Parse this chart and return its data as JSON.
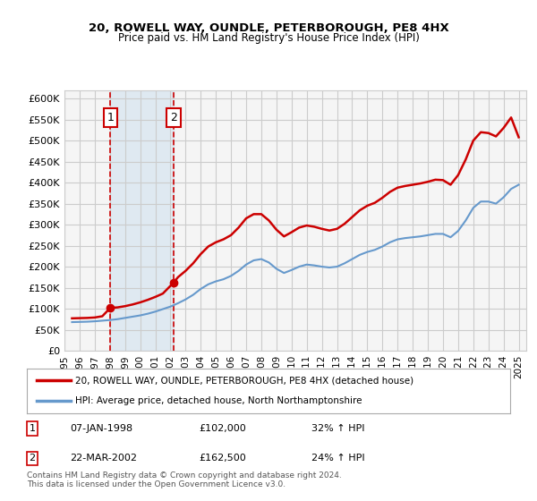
{
  "title1": "20, ROWELL WAY, OUNDLE, PETERBOROUGH, PE8 4HX",
  "title2": "Price paid vs. HM Land Registry's House Price Index (HPI)",
  "ylabel_ticks": [
    "£0",
    "£50K",
    "£100K",
    "£150K",
    "£200K",
    "£250K",
    "£300K",
    "£350K",
    "£400K",
    "£450K",
    "£500K",
    "£550K",
    "£600K"
  ],
  "ytick_values": [
    0,
    50000,
    100000,
    150000,
    200000,
    250000,
    300000,
    350000,
    400000,
    450000,
    500000,
    550000,
    600000
  ],
  "ylim": [
    0,
    620000
  ],
  "xlim_start": 1995.5,
  "xlim_end": 2025.5,
  "purchase1_x": 1998.03,
  "purchase1_y": 102000,
  "purchase1_label": "1",
  "purchase1_date": "07-JAN-1998",
  "purchase1_price": "£102,000",
  "purchase1_hpi": "32% ↑ HPI",
  "purchase2_x": 2002.22,
  "purchase2_y": 162500,
  "purchase2_label": "2",
  "purchase2_date": "22-MAR-2002",
  "purchase2_price": "£162,500",
  "purchase2_hpi": "24% ↑ HPI",
  "line1_color": "#cc0000",
  "line2_color": "#6699cc",
  "vline_color": "#cc0000",
  "shade_color": "#d6e4f0",
  "legend1": "20, ROWELL WAY, OUNDLE, PETERBOROUGH, PE8 4HX (detached house)",
  "legend2": "HPI: Average price, detached house, North Northamptonshire",
  "footnote": "Contains HM Land Registry data © Crown copyright and database right 2024.\nThis data is licensed under the Open Government Licence v3.0.",
  "hpi_data_x": [
    1995.5,
    1996.0,
    1996.5,
    1997.0,
    1997.5,
    1998.0,
    1998.5,
    1999.0,
    1999.5,
    2000.0,
    2000.5,
    2001.0,
    2001.5,
    2002.0,
    2002.5,
    2003.0,
    2003.5,
    2004.0,
    2004.5,
    2005.0,
    2005.5,
    2006.0,
    2006.5,
    2007.0,
    2007.5,
    2008.0,
    2008.5,
    2009.0,
    2009.5,
    2010.0,
    2010.5,
    2011.0,
    2011.5,
    2012.0,
    2012.5,
    2013.0,
    2013.5,
    2014.0,
    2014.5,
    2015.0,
    2015.5,
    2016.0,
    2016.5,
    2017.0,
    2017.5,
    2018.0,
    2018.5,
    2019.0,
    2019.5,
    2020.0,
    2020.5,
    2021.0,
    2021.5,
    2022.0,
    2022.5,
    2023.0,
    2023.5,
    2024.0,
    2024.5,
    2025.0
  ],
  "hpi_data_y": [
    68000,
    68500,
    69000,
    70000,
    71500,
    73000,
    75000,
    78000,
    81000,
    84000,
    88000,
    93000,
    99000,
    105000,
    113000,
    122000,
    133000,
    147000,
    158000,
    165000,
    170000,
    178000,
    190000,
    205000,
    215000,
    218000,
    210000,
    195000,
    185000,
    192000,
    200000,
    205000,
    203000,
    200000,
    198000,
    200000,
    208000,
    218000,
    228000,
    235000,
    240000,
    248000,
    258000,
    265000,
    268000,
    270000,
    272000,
    275000,
    278000,
    278000,
    270000,
    285000,
    310000,
    340000,
    355000,
    355000,
    350000,
    365000,
    385000,
    395000
  ],
  "red_data_x": [
    1995.5,
    1996.0,
    1996.5,
    1997.0,
    1997.5,
    1998.03,
    1998.5,
    1999.0,
    1999.5,
    2000.0,
    2000.5,
    2001.0,
    2001.5,
    2002.22,
    2002.5,
    2003.0,
    2003.5,
    2004.0,
    2004.5,
    2005.0,
    2005.5,
    2006.0,
    2006.5,
    2007.0,
    2007.5,
    2008.0,
    2008.5,
    2009.0,
    2009.5,
    2010.0,
    2010.5,
    2011.0,
    2011.5,
    2012.0,
    2012.5,
    2013.0,
    2013.5,
    2014.0,
    2014.5,
    2015.0,
    2015.5,
    2016.0,
    2016.5,
    2017.0,
    2017.5,
    2018.0,
    2018.5,
    2019.0,
    2019.5,
    2020.0,
    2020.5,
    2021.0,
    2021.5,
    2022.0,
    2022.5,
    2023.0,
    2023.5,
    2024.0,
    2024.5,
    2025.0
  ],
  "red_data_y": [
    77000,
    77500,
    78000,
    79000,
    82000,
    102000,
    103000,
    106000,
    110000,
    115000,
    121000,
    128000,
    136000,
    162500,
    175000,
    190000,
    208000,
    230000,
    248000,
    258000,
    265000,
    275000,
    293000,
    315000,
    325000,
    325000,
    310000,
    288000,
    272000,
    282000,
    293000,
    298000,
    295000,
    290000,
    286000,
    290000,
    302000,
    318000,
    334000,
    345000,
    352000,
    364000,
    378000,
    388000,
    392000,
    395000,
    398000,
    402000,
    407000,
    406000,
    395000,
    418000,
    455000,
    500000,
    520000,
    518000,
    510000,
    530000,
    555000,
    508000
  ],
  "xtick_years": [
    1995,
    1996,
    1997,
    1998,
    1999,
    2000,
    2001,
    2002,
    2003,
    2004,
    2005,
    2006,
    2007,
    2008,
    2009,
    2010,
    2011,
    2012,
    2013,
    2014,
    2015,
    2016,
    2017,
    2018,
    2019,
    2020,
    2021,
    2022,
    2023,
    2024,
    2025
  ],
  "bg_color": "#ffffff",
  "grid_color": "#cccccc",
  "plot_bg_color": "#f5f5f5"
}
